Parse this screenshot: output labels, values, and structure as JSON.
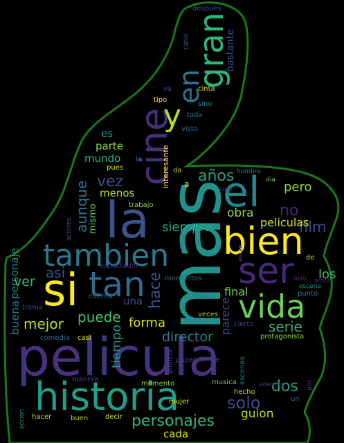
{
  "colors": {
    "background": "#000000",
    "outline": "#1a7a1a"
  },
  "words": [
    {
      "text": "pelicula",
      "color": "#46327e"
    },
    {
      "text": "mas",
      "color": "#21918c"
    },
    {
      "text": "historia",
      "color": "#1f9e89"
    },
    {
      "text": "si",
      "color": "#fde725"
    },
    {
      "text": "la",
      "color": "#3b528b"
    },
    {
      "text": "el",
      "color": "#25858e"
    },
    {
      "text": "bien",
      "color": "#fde725"
    },
    {
      "text": "cine",
      "color": "#472d7b"
    },
    {
      "text": "tambien",
      "color": "#2a788e"
    },
    {
      "text": "tan",
      "color": "#31688e"
    },
    {
      "text": "vida",
      "color": "#6ece58"
    },
    {
      "text": "ser",
      "color": "#482878"
    },
    {
      "text": "gran",
      "color": "#2fb47c"
    },
    {
      "text": "en",
      "color": "#2c728e"
    },
    {
      "text": "y",
      "color": "#b5de2b"
    },
    {
      "text": "personajes",
      "color": "#35b779"
    },
    {
      "text": "solo",
      "color": "#3e4989"
    },
    {
      "text": "director",
      "color": "#26828e"
    },
    {
      "text": "mejor",
      "color": "#b5de2b"
    },
    {
      "text": "puede",
      "color": "#4ac16d"
    },
    {
      "text": "hace",
      "color": "#3b528b"
    },
    {
      "text": "aunque",
      "color": "#2a788e"
    },
    {
      "text": "vez",
      "color": "#3b528b"
    },
    {
      "text": "obra",
      "color": "#90d743"
    },
    {
      "text": "film",
      "color": "#3e4989"
    },
    {
      "text": "peliculas",
      "color": "#d8e219"
    },
    {
      "text": "siempre",
      "color": "#22a884"
    },
    {
      "text": "pero",
      "color": "#90d743"
    },
    {
      "text": "no",
      "color": "#482878"
    },
    {
      "text": "años",
      "color": "#20a486"
    },
    {
      "text": "serie",
      "color": "#35b779"
    },
    {
      "text": "forma",
      "color": "#d8e219"
    },
    {
      "text": "tiempo",
      "color": "#21918c"
    },
    {
      "text": "final",
      "color": "#6ece58"
    },
    {
      "text": "parece",
      "color": "#3e4989"
    },
    {
      "text": "dos",
      "color": "#20a486"
    },
    {
      "text": "guion",
      "color": "#b5de2b"
    },
    {
      "text": "cada",
      "color": "#d8e219"
    },
    {
      "text": "asi",
      "color": "#3b528b"
    },
    {
      "text": "ver",
      "color": "#35b779"
    },
    {
      "text": "los",
      "color": "#4ac16d"
    },
    {
      "text": "una",
      "color": "#3e4989"
    },
    {
      "text": "buena",
      "color": "#2c728e"
    },
    {
      "text": "personaje",
      "color": "#25858e"
    },
    {
      "text": "mismo",
      "color": "#6ece58"
    },
    {
      "text": "menos",
      "color": "#b5de2b"
    },
    {
      "text": "mundo",
      "color": "#2fb47c"
    },
    {
      "text": "parte",
      "color": "#90d743"
    },
    {
      "text": "es",
      "color": "#1f9e89"
    },
    {
      "text": "interesante",
      "color": "#fde725"
    },
    {
      "text": "bastante",
      "color": "#3b528b"
    },
    {
      "text": "despues",
      "color": "#3b528b"
    },
    {
      "text": "caso",
      "color": "#31688e"
    },
    {
      "text": "cinta",
      "color": "#d8e219"
    },
    {
      "text": "sino",
      "color": "#25858e"
    },
    {
      "text": "toda",
      "color": "#2a788e"
    },
    {
      "text": "visto",
      "color": "#31688e"
    },
    {
      "text": "tipo",
      "color": "#fde725"
    },
    {
      "text": "va",
      "color": "#3e4989"
    },
    {
      "text": "lo",
      "color": "#2c728e"
    },
    {
      "text": "pues",
      "color": "#d8e219"
    },
    {
      "text": "da",
      "color": "#b5de2b"
    },
    {
      "text": "hombre",
      "color": "#26828e"
    },
    {
      "text": "aqui",
      "color": "#433e85"
    },
    {
      "text": "dia",
      "color": "#6ece58"
    },
    {
      "text": "a",
      "color": "#d8e219"
    },
    {
      "text": "trabajo",
      "color": "#90d743"
    },
    {
      "text": "actores",
      "color": "#3b528b"
    },
    {
      "text": "espectador",
      "color": "#472d7b"
    },
    {
      "text": "estan",
      "color": "#3e4989"
    },
    {
      "text": "de",
      "color": "#b5de2b"
    },
    {
      "text": "momentos",
      "color": "#31688e"
    },
    {
      "text": "aun",
      "color": "#482878"
    },
    {
      "text": "amor",
      "color": "#46327e"
    },
    {
      "text": "escena",
      "color": "#21918c"
    },
    {
      "text": "cuenta",
      "color": "#31688e"
    },
    {
      "text": "lugar",
      "color": "#2c728e"
    },
    {
      "text": "punto",
      "color": "#26828e"
    },
    {
      "text": "veces",
      "color": "#90d743"
    },
    {
      "text": "cierto",
      "color": "#3e4989"
    },
    {
      "text": "trama",
      "color": "#3b528b"
    },
    {
      "text": "comedia",
      "color": "#31688e"
    },
    {
      "text": "casi",
      "color": "#d8e219"
    },
    {
      "text": "primera",
      "color": "#3b528b"
    },
    {
      "text": "papel",
      "color": "#3e4989"
    },
    {
      "text": "se",
      "color": "#3e4989"
    },
    {
      "text": "escenas",
      "color": "#25858e"
    },
    {
      "text": "protagonista",
      "color": "#90d743"
    },
    {
      "text": "manera",
      "color": "#3e4989"
    },
    {
      "text": "momento",
      "color": "#90d743"
    },
    {
      "text": "musica",
      "color": "#6ece58"
    },
    {
      "text": "hecho",
      "color": "#b5de2b"
    },
    {
      "text": "ademas",
      "color": "#46327e"
    },
    {
      "text": "un",
      "color": "#31688e"
    },
    {
      "text": "por",
      "color": "#3e4989"
    },
    {
      "text": "mujer",
      "color": "#d8e219"
    },
    {
      "text": "accion",
      "color": "#21918c"
    },
    {
      "text": "hacer",
      "color": "#b5de2b"
    },
    {
      "text": "buen",
      "color": "#b5de2b"
    },
    {
      "text": "decir",
      "color": "#d8e219"
    }
  ]
}
